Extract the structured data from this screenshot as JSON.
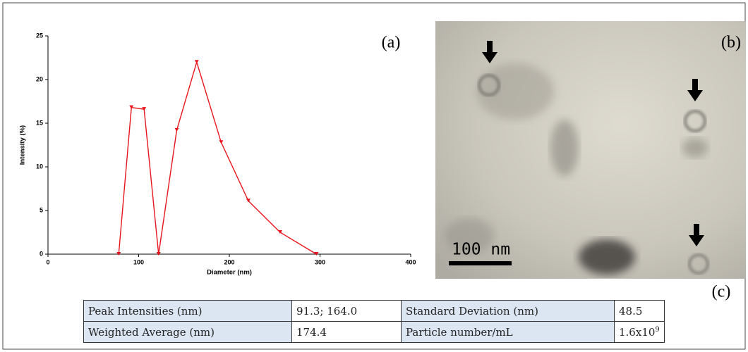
{
  "chart_data": {
    "type": "line",
    "panel_label": "(a)",
    "x_label": "Diameter (nm)",
    "y_label": "Intensity (%)",
    "x": [
      78,
      92,
      106,
      122,
      142,
      164,
      191,
      221,
      256,
      296
    ],
    "series": [
      {
        "color": "#e8141c",
        "values": [
          0,
          16.8,
          16.6,
          0,
          14.2,
          22,
          12.8,
          6.1,
          2.5,
          0
        ]
      }
    ],
    "xlim": [
      0,
      400
    ],
    "xticks": [
      0,
      100,
      200,
      300,
      400
    ],
    "ylim": [
      0,
      25
    ],
    "yticks": [
      0,
      5,
      10,
      15,
      20,
      25
    ]
  },
  "image": {
    "panel_label": "(b)",
    "scale_bar": "100 nm"
  },
  "table": {
    "panel_label": "(c)",
    "rows": [
      [
        "Peak Intensities (nm)",
        "91.3; 164.0",
        "Standard Deviation (nm)",
        "48.5"
      ],
      [
        "Weighted Average (nm)",
        "174.4",
        "Particle number/mL",
        {
          "text": "1.6x10",
          "sup": "9"
        }
      ]
    ]
  }
}
